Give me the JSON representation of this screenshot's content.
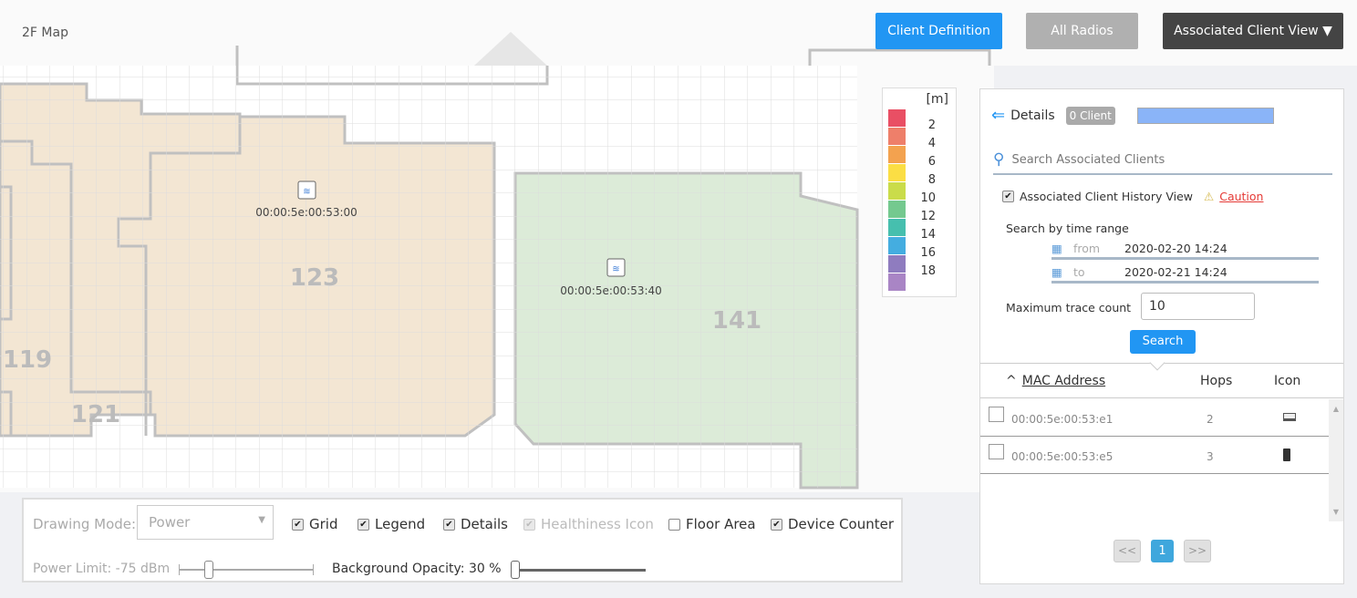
{
  "header": {
    "map_title": "2F Map",
    "buttons": {
      "client_definition": "Client Definition",
      "all_radios": "All Radios",
      "associated_client_view": "Associated Client View ▼"
    }
  },
  "colors": {
    "primary": "#2196f3",
    "disabled": "#b0b0b0",
    "dark": "#444444",
    "room_orange": "#f3e6d3",
    "room_green": "#dcebd8",
    "caution": "#e53935"
  },
  "map": {
    "rooms": [
      "123",
      "119",
      "121",
      "141"
    ],
    "access_points": [
      {
        "mac": "00:00:5e:00:53:00",
        "icon": "wifi-ap-icon"
      },
      {
        "mac": "00:00:5e:00:53:40",
        "icon": "wifi-ap-icon"
      }
    ]
  },
  "legend": {
    "unit": "[m]",
    "levels": [
      "2",
      "4",
      "6",
      "8",
      "10",
      "12",
      "14",
      "16",
      "18"
    ],
    "colors": [
      "#e94f64",
      "#ee7f6a",
      "#f3a24f",
      "#fbde44",
      "#cadc4a",
      "#74c98f",
      "#46bfae",
      "#44ade0",
      "#8f7cbf",
      "#a985c5"
    ]
  },
  "panel": {
    "details_label": "Details",
    "client_badge": "0 Client",
    "search_placeholder": "Search Associated Clients",
    "history_label": "Associated Client History View",
    "caution_label": "Caution",
    "time_range_label": "Search by time range",
    "from_label": "from",
    "from_value": "2020-02-20 14:24",
    "to_label": "to",
    "to_value": "2020-02-21 14:24",
    "max_trace_label": "Maximum trace count",
    "max_trace_value": "10",
    "search_button": "Search",
    "table": {
      "columns": [
        "MAC Address",
        "Hops",
        "Icon"
      ],
      "sort_indicator": "^",
      "rows": [
        {
          "mac": "00:00:5e:00:53:e1",
          "hops": "2",
          "icon": "laptop-icon"
        },
        {
          "mac": "00:00:5e:00:53:e5",
          "hops": "3",
          "icon": "phone-icon"
        }
      ]
    },
    "pagination": {
      "prev": "<<",
      "page": "1",
      "next": ">>"
    }
  },
  "controls": {
    "drawing_mode_label": "Drawing Mode:",
    "drawing_mode_value": "Power",
    "grid": "Grid",
    "legend": "Legend",
    "details": "Details",
    "healthiness_icon": "Healthiness Icon",
    "floor_area": "Floor Area",
    "device_counter": "Device Counter",
    "power_limit": "Power Limit: -75 dBm",
    "background_opacity": "Background Opacity: 30 %",
    "checks": {
      "grid": true,
      "legend": true,
      "details": true,
      "healthiness_icon": true,
      "floor_area": false,
      "device_counter": true
    }
  }
}
